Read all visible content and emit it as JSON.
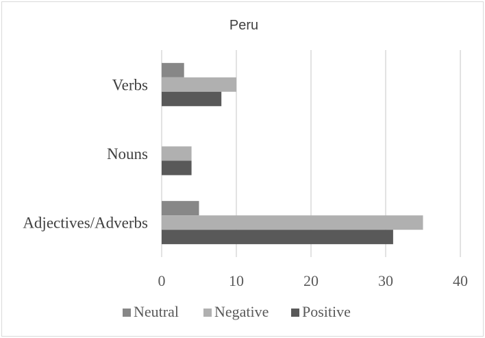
{
  "chart_data": {
    "type": "bar",
    "orientation": "horizontal",
    "title": "Peru",
    "categories": [
      "Verbs",
      "Nouns",
      "Adjectives/Adverbs"
    ],
    "series": [
      {
        "name": "Neutral",
        "values": [
          3,
          0,
          5
        ],
        "color": "#878787"
      },
      {
        "name": "Negative",
        "values": [
          10,
          4,
          35
        ],
        "color": "#b0b0b0"
      },
      {
        "name": "Positive",
        "values": [
          8,
          4,
          31
        ],
        "color": "#595959"
      }
    ],
    "xlim": [
      0,
      40
    ],
    "xticks": [
      0,
      10,
      20,
      30,
      40
    ],
    "grid": true,
    "legend": "bottom"
  }
}
